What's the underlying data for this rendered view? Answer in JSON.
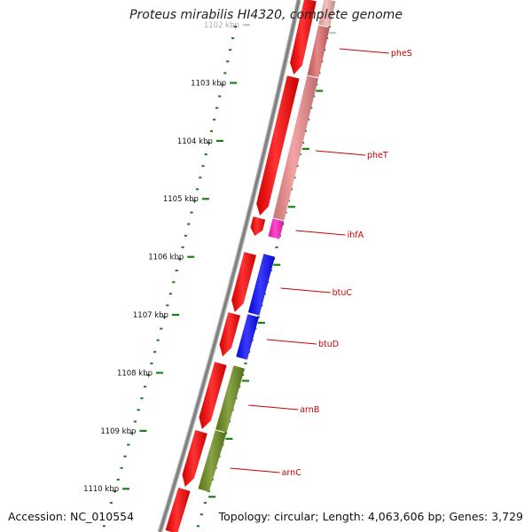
{
  "title": "Proteus mirabilis HI4320, complete genome",
  "footer": {
    "accession": "Accession: NC_010554",
    "summary": "Topology: circular; Length: 4,063,606 bp; Genes: 3,729"
  },
  "ruler": {
    "ticks": [
      {
        "label": "1102 kbp",
        "faded": true
      },
      {
        "label": "1103 kbp"
      },
      {
        "label": "1104 kbp"
      },
      {
        "label": "1105 kbp"
      },
      {
        "label": "1106 kbp"
      },
      {
        "label": "1107 kbp"
      },
      {
        "label": "1108 kbp"
      },
      {
        "label": "1109 kbp"
      },
      {
        "label": "1110 kbp"
      }
    ]
  },
  "colors": {
    "backbone": "#808080",
    "cds_forward": "#ff0000",
    "tick": "#1a7f1a",
    "label": "#cc0000",
    "pheS": "#e06a6a",
    "pheT": "#f08c8c",
    "ihfA": "#ff1fc0",
    "btuC": "#0a0aff",
    "btuD": "#0a0aff",
    "arnB": "#6b8c1a",
    "arnC": "#6b8c1a"
  },
  "genes": [
    {
      "name": "pheS",
      "color_key": "pheS"
    },
    {
      "name": "pheT",
      "color_key": "pheT"
    },
    {
      "name": "ihfA",
      "color_key": "ihfA"
    },
    {
      "name": "btuC",
      "color_key": "btuC"
    },
    {
      "name": "btuD",
      "color_key": "btuD"
    },
    {
      "name": "arnB",
      "color_key": "arnB"
    },
    {
      "name": "arnC",
      "color_key": "arnC"
    }
  ]
}
